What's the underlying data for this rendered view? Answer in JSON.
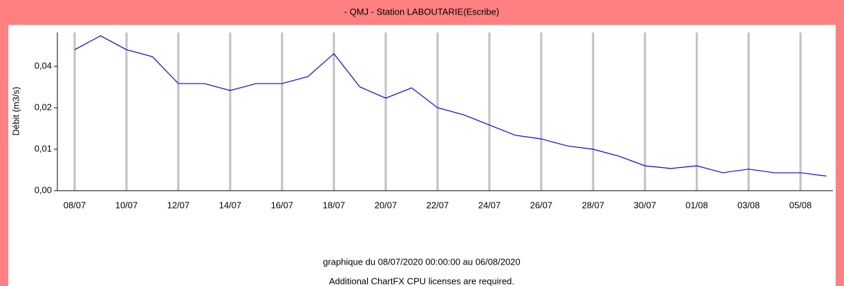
{
  "chart_data": {
    "type": "line",
    "title": "- QMJ - Station LABOUTARIE(Escribe)",
    "y_label": "Débit (m3/s)",
    "footer": "graphique du 08/07/2020 00:00:00 au 06/08/2020",
    "notice": "Additional ChartFX CPU licenses are required.",
    "categories": [
      "08/07",
      null,
      "10/07",
      null,
      "12/07",
      null,
      "14/07",
      null,
      "16/07",
      null,
      "18/07",
      null,
      "20/07",
      null,
      "22/07",
      null,
      "24/07",
      null,
      "26/07",
      null,
      "28/07",
      null,
      "30/07",
      null,
      "01/08",
      null,
      "03/08",
      null,
      "05/08",
      null
    ],
    "series": [
      {
        "color": "#0000ff",
        "values": [
          0.0425,
          0.0467,
          0.0425,
          0.0404,
          0.0323,
          0.0323,
          0.0302,
          0.0323,
          0.0323,
          0.0344,
          0.0413,
          0.0313,
          0.0279,
          0.031,
          0.025,
          0.0229,
          0.0198,
          0.0167,
          0.0156,
          0.0135,
          0.0125,
          0.0104,
          0.0075,
          0.0067,
          0.0075,
          0.0054,
          0.0065,
          0.0054,
          0.0054,
          0.0044
        ]
      }
    ],
    "ylim": [
      0,
      0.0477
    ],
    "yticks": [
      {
        "value": 0,
        "label": "0,00"
      },
      {
        "value": 0.0125,
        "label": "0,01"
      },
      {
        "value": 0.025,
        "label": "0,02"
      },
      {
        "value": 0.0375,
        "label": "0,04"
      }
    ],
    "grid": true
  }
}
